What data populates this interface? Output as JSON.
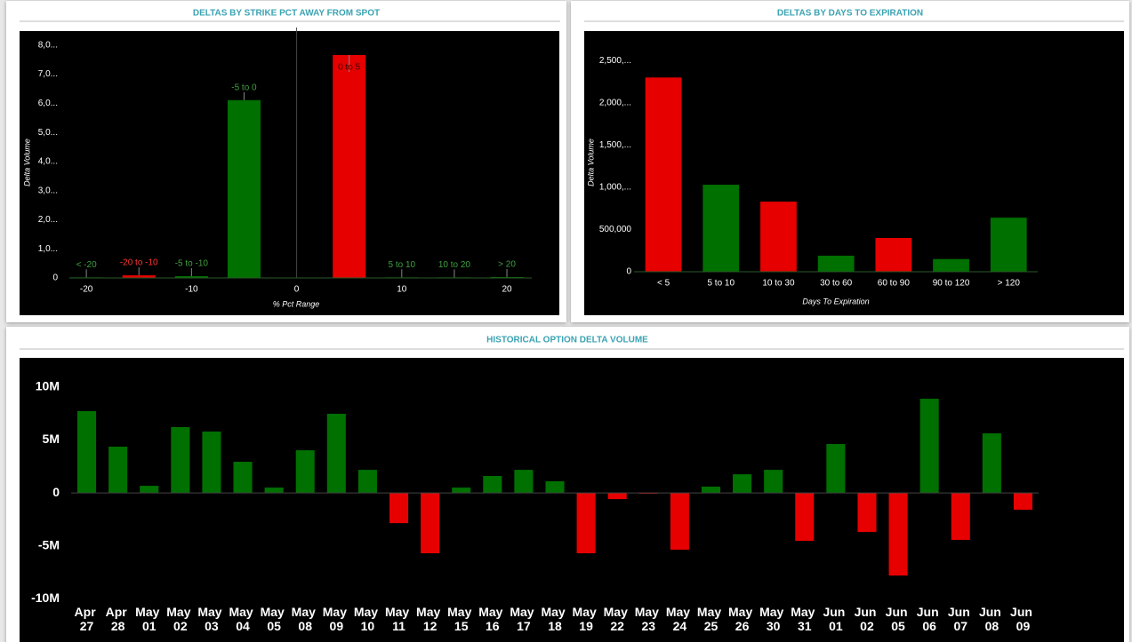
{
  "chart_data": [
    {
      "type": "bar",
      "title": "DELTAS BY STRIKE PCT AWAY FROM SPOT",
      "categories": [
        "< -20",
        "-20 to -10",
        "-5 to -10",
        "-5 to 0",
        "0 to 5",
        "5 to 10",
        "10 to 20",
        "> 20"
      ],
      "x": [
        -20,
        -15,
        -10,
        -5,
        5,
        10,
        15,
        20
      ],
      "values": [
        20000,
        90000,
        60000,
        6110000,
        7660000,
        20000,
        20000,
        30000
      ],
      "colors": [
        "#007000",
        "#e60000",
        "#007000",
        "#007000",
        "#e60000",
        "#007000",
        "#007000",
        "#007000"
      ],
      "label_colors": [
        "#3fa03f",
        "#ff3333",
        "#3fa03f",
        "#3fa03f",
        "#3a0000",
        "#3fa03f",
        "#3fa03f",
        "#3fa03f"
      ],
      "xlim": [
        -25,
        23
      ],
      "xticks": [
        -20,
        -10,
        0,
        10,
        20
      ],
      "ylim": [
        0,
        8300000
      ],
      "yticks": [
        0,
        {
          "value": 1000000,
          "label": "1,0..."
        },
        {
          "value": 2000000,
          "label": "2,0..."
        },
        {
          "value": 3000000,
          "label": "3,0..."
        },
        {
          "value": 4000000,
          "label": "4,0..."
        },
        {
          "value": 5000000,
          "label": "5,0..."
        },
        {
          "value": 6000000,
          "label": "6,0..."
        },
        {
          "value": 7000000,
          "label": "7,0..."
        },
        {
          "value": 8000000,
          "label": "8,0..."
        }
      ],
      "x_label": "% Pct Range",
      "y_label": "Delta Volume"
    },
    {
      "type": "bar",
      "title": "DELTAS BY DAYS TO EXPIRATION",
      "categories": [
        "< 5",
        "5 to 10",
        "10 to 30",
        "30 to 60",
        "60 to 90",
        "90 to 120",
        "> 120"
      ],
      "values": [
        2300000,
        1030000,
        830000,
        190000,
        400000,
        150000,
        640000
      ],
      "colors": [
        "#e60000",
        "#007000",
        "#e60000",
        "#007000",
        "#e60000",
        "#007000",
        "#007000"
      ],
      "ylim": [
        0,
        2650000
      ],
      "yticks": [
        0,
        {
          "value": 500000,
          "label": "500,000"
        },
        {
          "value": 1000000,
          "label": "1,000,..."
        },
        {
          "value": 1500000,
          "label": "1,500,..."
        },
        {
          "value": 2000000,
          "label": "2,000,..."
        },
        {
          "value": 2500000,
          "label": "2,500,..."
        }
      ],
      "x_label": "Days To Expiration",
      "y_label": "Delta Volume"
    },
    {
      "type": "bar",
      "title": "HISTORICAL OPTION DELTA VOLUME",
      "categories": [
        "Apr 27",
        "Apr 28",
        "May 01",
        "May 02",
        "May 03",
        "May 04",
        "May 05",
        "May 08",
        "May 09",
        "May 10",
        "May 11",
        "May 12",
        "May 15",
        "May 16",
        "May 17",
        "May 18",
        "May 19",
        "May 22",
        "May 23",
        "May 24",
        "May 25",
        "May 26",
        "May 30",
        "May 31",
        "Jun 01",
        "Jun 02",
        "Jun 05",
        "Jun 06",
        "Jun 07",
        "Jun 08",
        "Jun 09"
      ],
      "values": [
        7730000,
        4370000,
        670000,
        6220000,
        5800000,
        2940000,
        500000,
        4030000,
        7480000,
        2180000,
        -2860000,
        -5710000,
        500000,
        1600000,
        2180000,
        1100000,
        -5710000,
        -590000,
        -80000,
        -5380000,
        590000,
        1760000,
        2180000,
        -4540000,
        4620000,
        -3700000,
        -7820000,
        8900000,
        -4450000,
        5630000,
        -1600000
      ],
      "positive_color": "#007000",
      "negative_color": "#e60000",
      "ylim": [
        -14100000,
        12600000
      ],
      "yticks": [
        {
          "value": -10000000,
          "label": "-10M"
        },
        {
          "value": -5000000,
          "label": "-5M"
        },
        0,
        {
          "value": 5000000,
          "label": "5M"
        },
        {
          "value": 10000000,
          "label": "10M"
        }
      ]
    }
  ]
}
